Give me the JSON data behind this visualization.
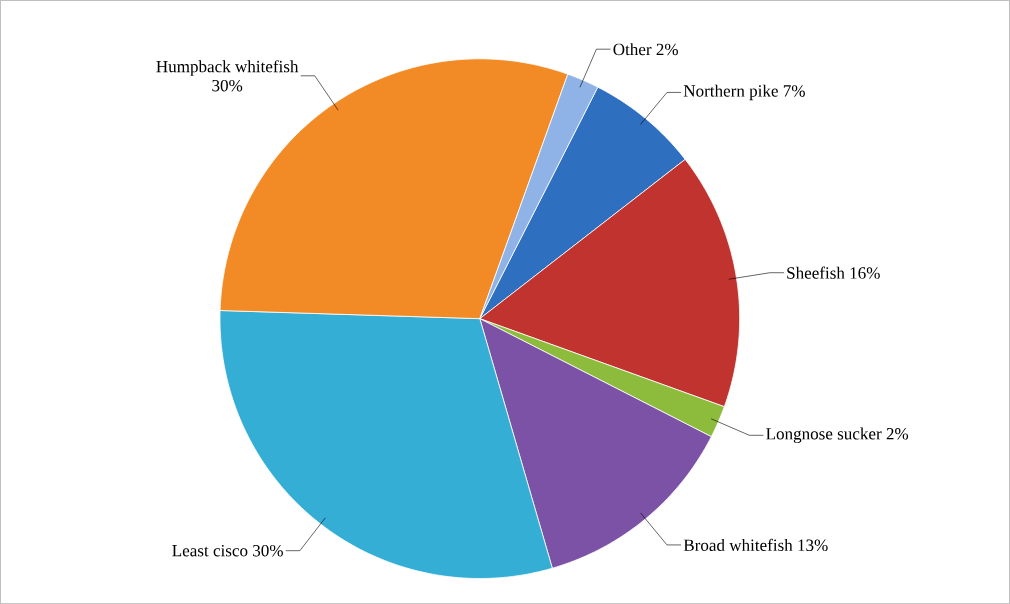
{
  "chart_data": {
    "type": "pie",
    "categories": [
      "Northern pike",
      "Sheefish",
      "Longnose sucker",
      "Broad whitefish",
      "Least cisco",
      "Humpback whitefish",
      "Other"
    ],
    "values": [
      7,
      16,
      2,
      13,
      30,
      30,
      2
    ],
    "value_labels": [
      "7%",
      "16%",
      "2%",
      "13%",
      "30%",
      "30%",
      "2%"
    ],
    "colors": [
      "#2e6fc0",
      "#c0332f",
      "#8dbb3b",
      "#7b52a6",
      "#35aed6",
      "#f28b26",
      "#8fb3e6"
    ]
  }
}
